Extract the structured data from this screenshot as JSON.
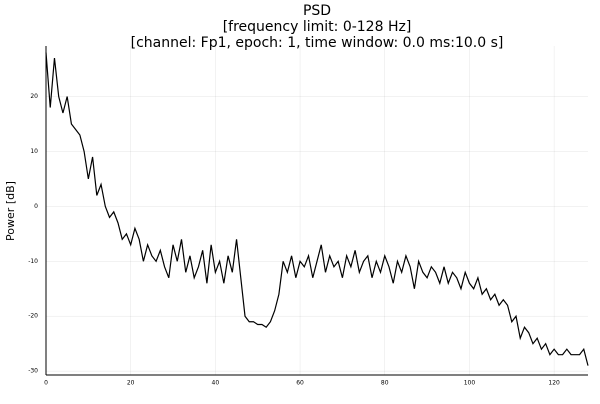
{
  "chart_data": {
    "type": "line",
    "title": [
      "PSD",
      "[frequency limit: 0-128 Hz]",
      "[channel: Fp1, epoch: 1, time window: 0.0 ms:10.0 s]"
    ],
    "y_label": "Power [dB]",
    "x": [
      0,
      1,
      2,
      3,
      4,
      5,
      6,
      7,
      8,
      9,
      10,
      11,
      12,
      13,
      14,
      15,
      16,
      17,
      18,
      19,
      20,
      21,
      22,
      23,
      24,
      25,
      26,
      27,
      28,
      29,
      30,
      31,
      32,
      33,
      34,
      35,
      36,
      37,
      38,
      39,
      40,
      41,
      42,
      43,
      44,
      45,
      46,
      47,
      48,
      49,
      50,
      51,
      52,
      53,
      54,
      55,
      56,
      57,
      58,
      59,
      60,
      61,
      62,
      63,
      64,
      65,
      66,
      67,
      68,
      69,
      70,
      71,
      72,
      73,
      74,
      75,
      76,
      77,
      78,
      79,
      80,
      81,
      82,
      83,
      84,
      85,
      86,
      87,
      88,
      89,
      90,
      91,
      92,
      93,
      94,
      95,
      96,
      97,
      98,
      99,
      100,
      101,
      102,
      103,
      104,
      105,
      106,
      107,
      108,
      109,
      110,
      111,
      112,
      113,
      114,
      115,
      116,
      117,
      118,
      119,
      120,
      121,
      122,
      123,
      124,
      125,
      126,
      127,
      128
    ],
    "series": [
      {
        "color": "#000000",
        "values": [
          28,
          18,
          27,
          20,
          17,
          20,
          15,
          14,
          13,
          10,
          5,
          9,
          2,
          4,
          0,
          -2,
          -1,
          -3,
          -6,
          -5,
          -7,
          -4,
          -6,
          -10,
          -7,
          -9,
          -10,
          -8,
          -11,
          -13,
          -7,
          -10,
          -6,
          -12,
          -9,
          -13,
          -11,
          -8,
          -14,
          -7,
          -12,
          -10,
          -14,
          -9,
          -12,
          -6,
          -13,
          -20,
          -21,
          -21,
          -21.5,
          -21.5,
          -22,
          -21,
          -19,
          -16,
          -10,
          -12,
          -9,
          -13,
          -10,
          -11,
          -9,
          -13,
          -10,
          -7,
          -12,
          -9,
          -11,
          -10,
          -13,
          -9,
          -11,
          -8,
          -12,
          -10,
          -9,
          -13,
          -10,
          -12,
          -9,
          -11,
          -14,
          -10,
          -12,
          -9,
          -11,
          -15,
          -10,
          -12,
          -13,
          -11,
          -12,
          -14,
          -11,
          -14,
          -12,
          -13,
          -15,
          -12,
          -14,
          -15,
          -13,
          -16,
          -15,
          -17,
          -16,
          -18,
          -17,
          -18,
          -21,
          -20,
          -24,
          -22,
          -23,
          -25,
          -24,
          -26,
          -25,
          -27,
          -26,
          -27,
          -27,
          -26,
          -27,
          -27,
          -27,
          -26,
          -29
        ]
      }
    ],
    "xlim": [
      0,
      128
    ],
    "xticks": [
      0,
      20,
      40,
      60,
      80,
      100,
      120
    ],
    "ylim": [
      -30.7,
      29.2
    ],
    "yticks": [
      -30,
      -20,
      -10,
      0,
      10,
      20
    ],
    "grid": true
  }
}
